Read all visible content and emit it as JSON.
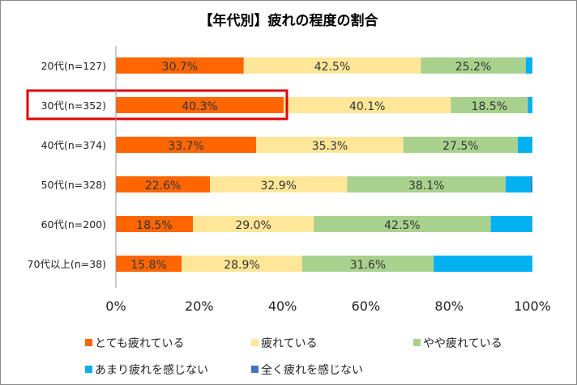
{
  "chart_data": {
    "type": "bar",
    "orientation": "horizontal",
    "stacked": true,
    "title": "【年代別】疲れの程度の割合",
    "categories": [
      "20代(n=127)",
      "30代(n=352)",
      "40代(n=374)",
      "50代(n=328)",
      "60代(n=200)",
      "70代以上(n=38)"
    ],
    "series": [
      {
        "name": "とても疲れている",
        "color": "#FF6600",
        "values": [
          30.7,
          40.3,
          33.7,
          22.6,
          18.5,
          15.8
        ]
      },
      {
        "name": "疲れている",
        "color": "#FFE699",
        "values": [
          42.5,
          40.1,
          35.3,
          32.9,
          29.0,
          28.9
        ]
      },
      {
        "name": "やや疲れている",
        "color": "#A9D18E",
        "values": [
          25.2,
          18.5,
          27.5,
          38.1,
          42.5,
          31.6
        ]
      },
      {
        "name": "あまり疲れを感じない",
        "color": "#00B0F0",
        "values": [
          1.6,
          1.1,
          3.5,
          6.1,
          10.0,
          23.7
        ]
      },
      {
        "name": "全く疲れを感じない",
        "color": "#4472C4",
        "values": [
          0,
          0,
          0,
          0.3,
          0,
          0
        ]
      }
    ],
    "data_labels_series": [
      0,
      1,
      2
    ],
    "xlim": [
      0,
      100
    ],
    "xticks": [
      "0%",
      "20%",
      "40%",
      "60%",
      "80%",
      "100%"
    ],
    "legend": "bottom",
    "grid": false,
    "highlight": {
      "category": "30代(n=352)",
      "color": "#E00000"
    }
  }
}
